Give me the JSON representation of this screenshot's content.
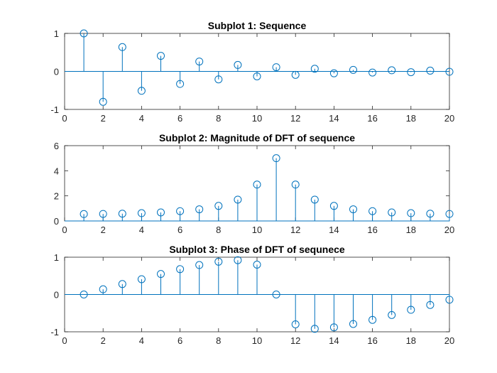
{
  "figure": {
    "stem_color": "#0072bd",
    "axis_color": "#262626"
  },
  "chart_data": [
    {
      "type": "stem",
      "title": "Subplot 1: Sequence",
      "xlim": [
        0,
        20
      ],
      "ylim": [
        -1,
        1
      ],
      "xticks": [
        0,
        2,
        4,
        6,
        8,
        10,
        12,
        14,
        16,
        18,
        20
      ],
      "yticks": [
        -1,
        0,
        1
      ],
      "x": [
        1,
        2,
        3,
        4,
        5,
        6,
        7,
        8,
        9,
        10,
        11,
        12,
        13,
        14,
        15,
        16,
        17,
        18,
        19,
        20
      ],
      "y": [
        1.0,
        -0.8,
        0.64,
        -0.51,
        0.41,
        -0.33,
        0.26,
        -0.21,
        0.17,
        -0.13,
        0.11,
        -0.09,
        0.07,
        -0.05,
        0.04,
        -0.03,
        0.03,
        -0.02,
        0.02,
        -0.01
      ],
      "grid": false
    },
    {
      "type": "stem",
      "title": "Subplot 2: Magnitude of DFT of sequence",
      "xlim": [
        0,
        20
      ],
      "ylim": [
        0,
        6
      ],
      "xticks": [
        0,
        2,
        4,
        6,
        8,
        10,
        12,
        14,
        16,
        18,
        20
      ],
      "yticks": [
        0,
        2,
        4,
        6
      ],
      "x": [
        1,
        2,
        3,
        4,
        5,
        6,
        7,
        8,
        9,
        10,
        11,
        12,
        13,
        14,
        15,
        16,
        17,
        18,
        19,
        20
      ],
      "y": [
        0.55,
        0.56,
        0.58,
        0.62,
        0.68,
        0.78,
        0.93,
        1.2,
        1.7,
        2.9,
        5.0,
        2.9,
        1.7,
        1.2,
        0.93,
        0.78,
        0.68,
        0.62,
        0.58,
        0.56
      ],
      "grid": false
    },
    {
      "type": "stem",
      "title": "Subplot 3: Phase of DFT of sequnece",
      "xlim": [
        0,
        20
      ],
      "ylim": [
        -1,
        1
      ],
      "xticks": [
        0,
        2,
        4,
        6,
        8,
        10,
        12,
        14,
        16,
        18,
        20
      ],
      "yticks": [
        -1,
        0,
        1
      ],
      "x": [
        1,
        2,
        3,
        4,
        5,
        6,
        7,
        8,
        9,
        10,
        11,
        12,
        13,
        14,
        15,
        16,
        17,
        18,
        19,
        20
      ],
      "y": [
        0.0,
        0.14,
        0.28,
        0.41,
        0.55,
        0.68,
        0.79,
        0.88,
        0.92,
        0.8,
        0.0,
        -0.8,
        -0.92,
        -0.88,
        -0.79,
        -0.68,
        -0.55,
        -0.41,
        -0.28,
        -0.14
      ],
      "grid": false
    }
  ]
}
